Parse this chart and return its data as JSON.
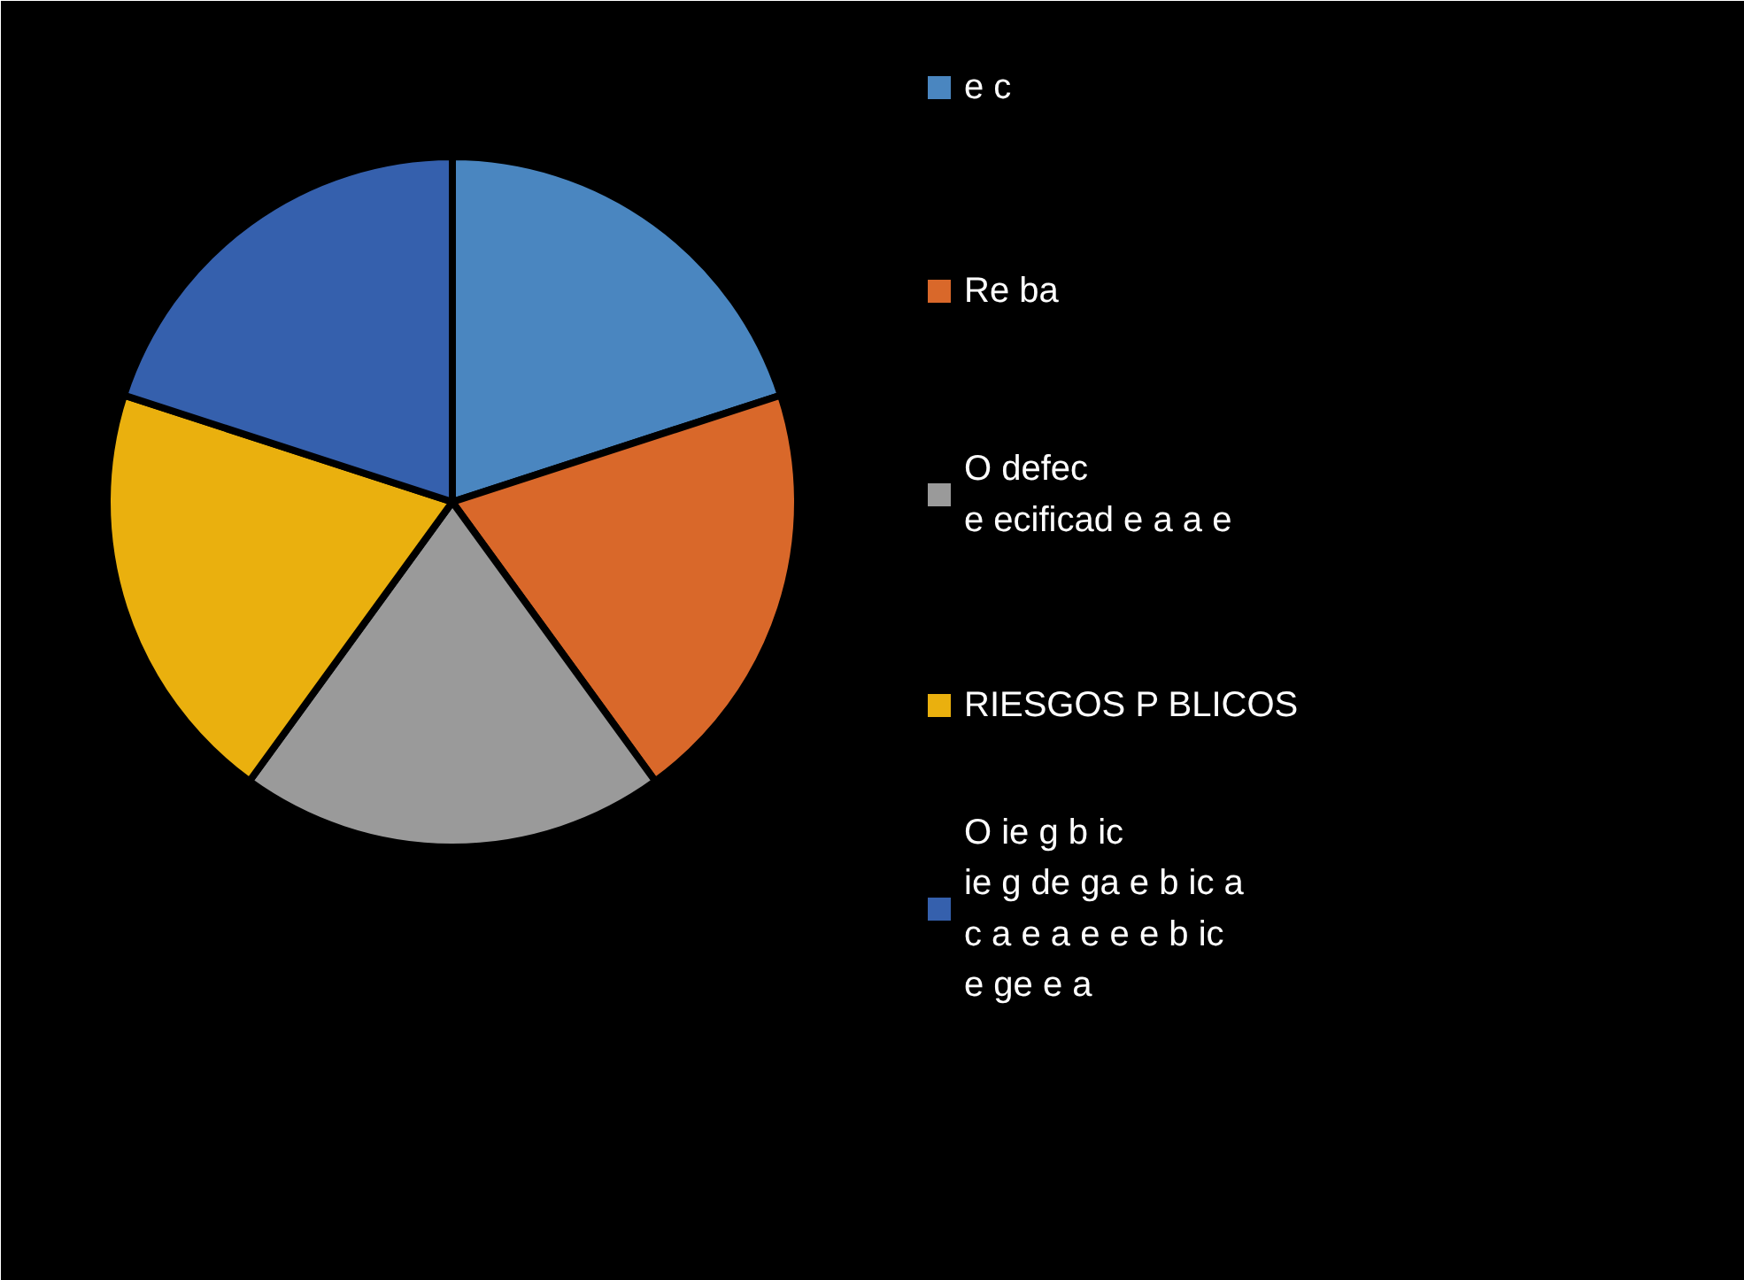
{
  "chart_data": {
    "type": "pie",
    "categories": [
      "e c",
      "Re ba",
      "O defec\ne ecificad e a a e",
      "RIESGOS P BLICOS",
      "O ie g b ic\nie g de ga e b ic a\nc a e a e e e b ic\ne ge e a"
    ],
    "values": [
      20,
      20,
      20,
      20,
      20
    ],
    "colors": [
      "#4a86c0",
      "#d9682a",
      "#9a9a9a",
      "#eab00e",
      "#3560ad"
    ],
    "legend": "right"
  }
}
